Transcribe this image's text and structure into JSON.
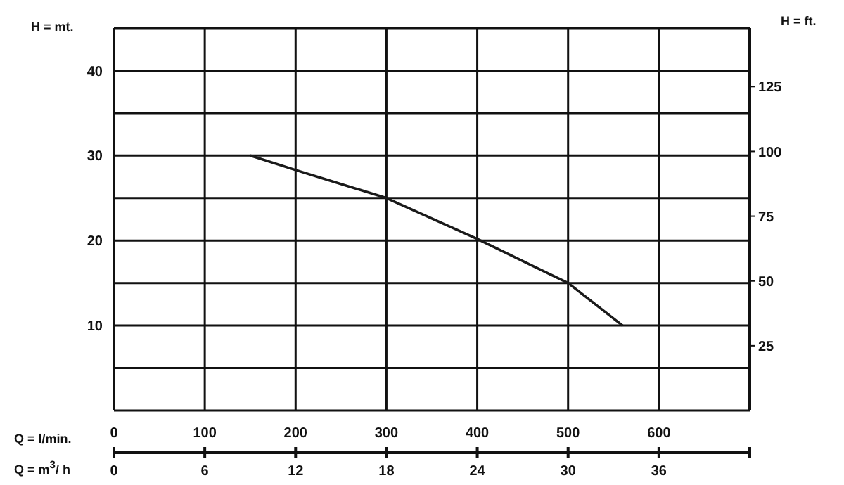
{
  "chart_data": {
    "type": "line",
    "ylabel": "H = mt.",
    "y2label": "H = ft.",
    "xlabel": "Q = l/min.",
    "x2label": "Q = m$^{3}$/ h",
    "x": [
      150,
      200,
      300,
      400,
      500,
      560
    ],
    "series": [
      {
        "color": "#1a1a1a",
        "values": [
          30,
          28.3,
          25,
          20.2,
          15,
          10
        ]
      }
    ],
    "xlim": [
      0,
      700
    ],
    "xticks": [
      0,
      100,
      200,
      300,
      400,
      500,
      600,
      {
        "value": 700,
        "label": null
      }
    ],
    "x2lim": [
      0,
      42
    ],
    "x2ticks": [
      0,
      6,
      12,
      18,
      24,
      30,
      36,
      {
        "value": 42,
        "label": null
      }
    ],
    "ylim": [
      0,
      45
    ],
    "yticks": [
      {
        "value": 0,
        "label": null
      },
      {
        "value": 5,
        "label": null
      },
      10,
      {
        "value": 15,
        "label": null
      },
      20,
      {
        "value": 25,
        "label": null
      },
      30,
      {
        "value": 35,
        "label": null
      },
      40,
      {
        "value": 45,
        "label": null
      }
    ],
    "y2lim": [
      0,
      147.6
    ],
    "y2ticks": [
      25,
      50,
      75,
      100,
      125
    ],
    "grid": true,
    "marker": "none",
    "line_style": "solid",
    "legend": false
  }
}
